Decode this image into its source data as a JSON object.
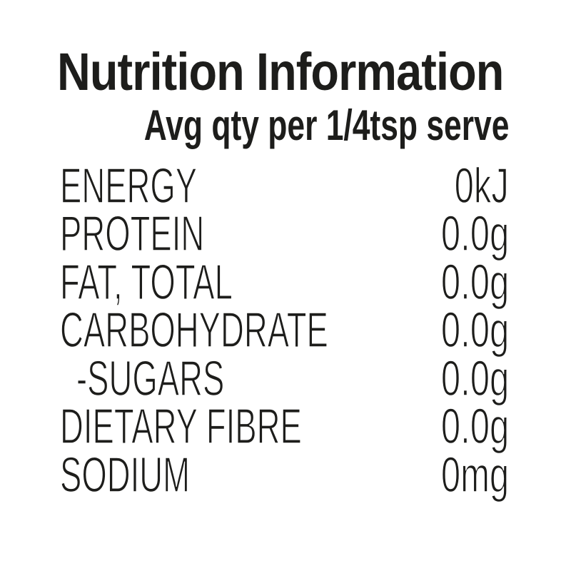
{
  "panel": {
    "title": "Nutrition Information",
    "subtitle": "Avg qty per 1/4tsp serve",
    "text_color": "#1d1d1b",
    "background_color": "#ffffff",
    "rows": [
      {
        "label": "ENERGY",
        "value": "0kJ",
        "indent": false
      },
      {
        "label": "PROTEIN",
        "value": "0.0g",
        "indent": false
      },
      {
        "label": "FAT, TOTAL",
        "value": "0.0g",
        "indent": false
      },
      {
        "label": "CARBOHYDRATE",
        "value": "0.0g",
        "indent": false
      },
      {
        "label": "-SUGARS",
        "value": "0.0g",
        "indent": true
      },
      {
        "label": "DIETARY FIBRE",
        "value": "0.0g",
        "indent": false
      },
      {
        "label": "SODIUM",
        "value": "0mg",
        "indent": false
      }
    ]
  }
}
